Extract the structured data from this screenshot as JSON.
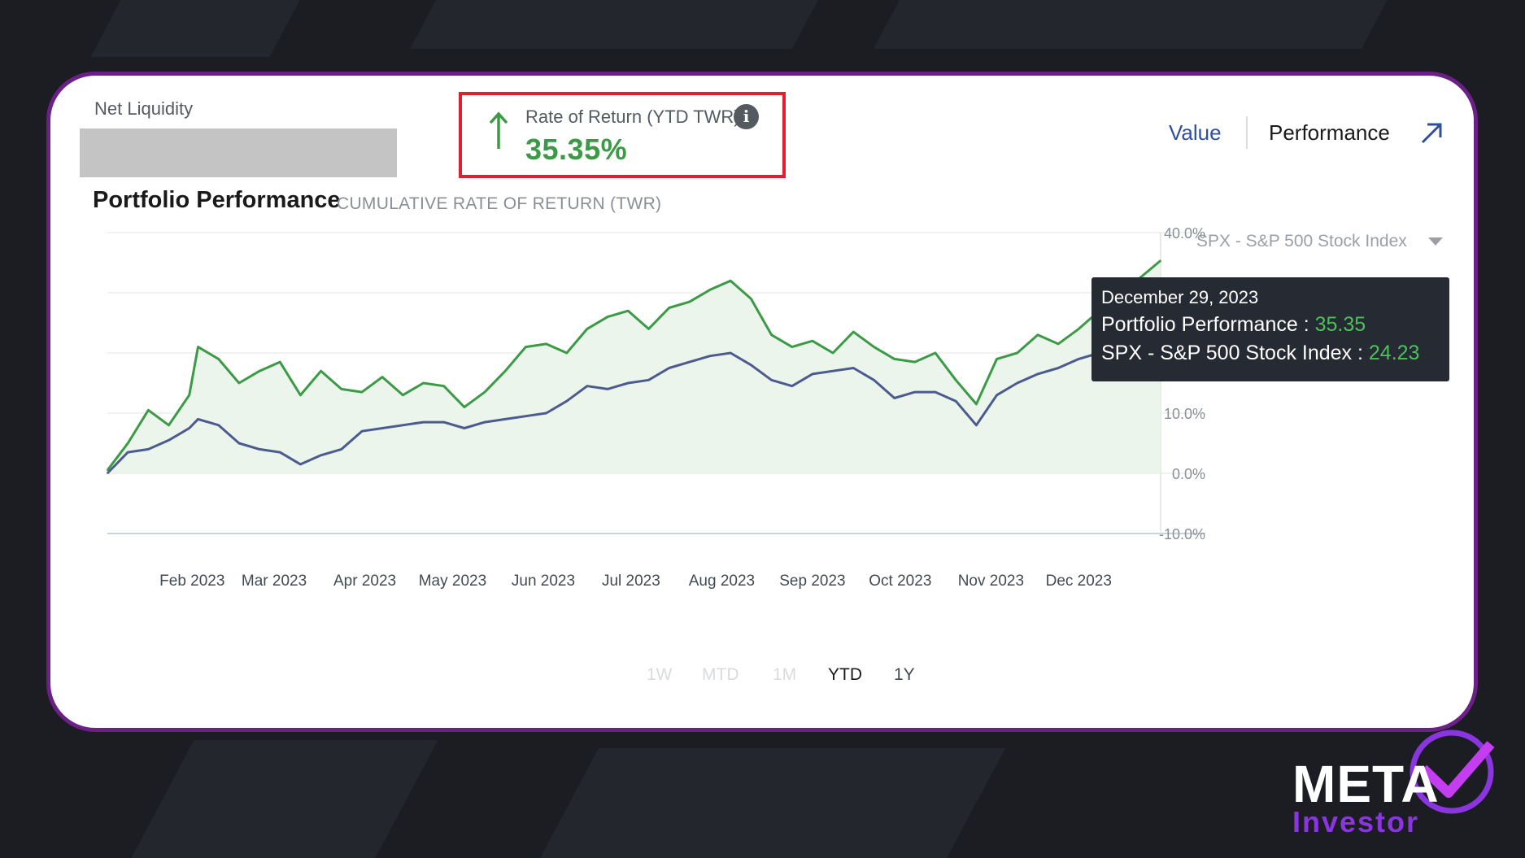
{
  "net_liquidity": {
    "label": "Net Liquidity"
  },
  "rate_of_return": {
    "label": "Rate of Return (YTD TWR)",
    "value": "35.35%",
    "info_icon": "info-icon",
    "trend_icon": "arrow-up-icon",
    "accent": "#3c9a47"
  },
  "view_toggle": {
    "value_label": "Value",
    "performance_label": "Performance",
    "expand_icon": "arrow-up-right-icon"
  },
  "chart_header": {
    "title": "Portfolio Performance",
    "subtitle": "CUMULATIVE RATE OF RETURN (TWR)"
  },
  "benchmark_select": {
    "selected": "SPX - S&P 500 Stock Index",
    "icon": "caret-down-icon"
  },
  "tooltip": {
    "date": "December 29, 2023",
    "portfolio_label": "Portfolio Performance : ",
    "portfolio_value": "35.35",
    "benchmark_label": "SPX - S&P 500 Stock Index : ",
    "benchmark_value": "24.23"
  },
  "periods": [
    "1W",
    "MTD",
    "1M",
    "YTD",
    "1Y"
  ],
  "active_period": "YTD",
  "logo": {
    "line1": "META",
    "line2": "Investor"
  },
  "chart_data": {
    "type": "line",
    "title": "Portfolio Performance",
    "subtitle": "CUMULATIVE RATE OF RETURN (TWR)",
    "x_tick_labels": [
      "Feb 2023",
      "Mar 2023",
      "Apr 2023",
      "May 2023",
      "Jun 2023",
      "Jul 2023",
      "Aug 2023",
      "Sep 2023",
      "Oct 2023",
      "Nov 2023",
      "Dec 2023"
    ],
    "y_tick_labels": [
      "40.0%",
      "30.0%",
      "20.0%",
      "10.0%",
      "0.0%",
      "-10.0%"
    ],
    "ylim": [
      -10,
      40
    ],
    "y_ticks": [
      40,
      30,
      20,
      10,
      0,
      -10
    ],
    "x_ticks": [
      "2023-02-01",
      "2023-03-01",
      "2023-04-01",
      "2023-05-01",
      "2023-06-01",
      "2023-07-01",
      "2023-08-01",
      "2023-09-01",
      "2023-10-01",
      "2023-11-01",
      "2023-12-01"
    ],
    "xlim": [
      "2023-01-03",
      "2023-12-29"
    ],
    "grid": true,
    "series": [
      {
        "name": "Portfolio Performance",
        "color": "#3c9a47",
        "fill": true,
        "x": [
          "2023-01-03",
          "2023-01-10",
          "2023-01-17",
          "2023-01-24",
          "2023-01-31",
          "2023-02-03",
          "2023-02-10",
          "2023-02-17",
          "2023-02-24",
          "2023-03-03",
          "2023-03-10",
          "2023-03-17",
          "2023-03-24",
          "2023-03-31",
          "2023-04-07",
          "2023-04-14",
          "2023-04-21",
          "2023-04-28",
          "2023-05-05",
          "2023-05-12",
          "2023-05-19",
          "2023-05-26",
          "2023-06-02",
          "2023-06-09",
          "2023-06-16",
          "2023-06-23",
          "2023-06-30",
          "2023-07-07",
          "2023-07-14",
          "2023-07-21",
          "2023-07-28",
          "2023-08-04",
          "2023-08-11",
          "2023-08-18",
          "2023-08-25",
          "2023-09-01",
          "2023-09-08",
          "2023-09-15",
          "2023-09-22",
          "2023-09-29",
          "2023-10-06",
          "2023-10-13",
          "2023-10-20",
          "2023-10-27",
          "2023-11-03",
          "2023-11-10",
          "2023-11-17",
          "2023-11-24",
          "2023-12-01",
          "2023-12-08",
          "2023-12-15",
          "2023-12-22",
          "2023-12-29"
        ],
        "y": [
          0.5,
          5.0,
          10.5,
          8.0,
          13.0,
          21.0,
          19.0,
          15.0,
          17.0,
          18.5,
          13.0,
          17.0,
          14.0,
          13.5,
          16.0,
          13.0,
          15.0,
          14.5,
          11.0,
          13.5,
          17.0,
          21.0,
          21.5,
          20.0,
          24.0,
          26.0,
          27.0,
          24.0,
          27.5,
          28.5,
          30.5,
          32.0,
          29.0,
          23.0,
          21.0,
          22.0,
          20.0,
          23.5,
          21.0,
          19.0,
          18.5,
          20.0,
          15.5,
          11.5,
          19.0,
          20.0,
          23.0,
          21.5,
          24.0,
          27.0,
          30.0,
          32.5,
          35.35
        ]
      },
      {
        "name": "SPX - S&P 500 Stock Index",
        "color": "#4c5b8f",
        "fill": false,
        "x": [
          "2023-01-03",
          "2023-01-10",
          "2023-01-17",
          "2023-01-24",
          "2023-01-31",
          "2023-02-03",
          "2023-02-10",
          "2023-02-17",
          "2023-02-24",
          "2023-03-03",
          "2023-03-10",
          "2023-03-17",
          "2023-03-24",
          "2023-03-31",
          "2023-04-07",
          "2023-04-14",
          "2023-04-21",
          "2023-04-28",
          "2023-05-05",
          "2023-05-12",
          "2023-05-19",
          "2023-05-26",
          "2023-06-02",
          "2023-06-09",
          "2023-06-16",
          "2023-06-23",
          "2023-06-30",
          "2023-07-07",
          "2023-07-14",
          "2023-07-21",
          "2023-07-28",
          "2023-08-04",
          "2023-08-11",
          "2023-08-18",
          "2023-08-25",
          "2023-09-01",
          "2023-09-08",
          "2023-09-15",
          "2023-09-22",
          "2023-09-29",
          "2023-10-06",
          "2023-10-13",
          "2023-10-20",
          "2023-10-27",
          "2023-11-03",
          "2023-11-10",
          "2023-11-17",
          "2023-11-24",
          "2023-12-01",
          "2023-12-08",
          "2023-12-15",
          "2023-12-22",
          "2023-12-29"
        ],
        "y": [
          0.0,
          3.5,
          4.0,
          5.5,
          7.5,
          9.0,
          8.0,
          5.0,
          4.0,
          3.5,
          1.5,
          3.0,
          4.0,
          7.0,
          7.5,
          8.0,
          8.5,
          8.5,
          7.5,
          8.5,
          9.0,
          9.5,
          10.0,
          12.0,
          14.5,
          14.0,
          15.0,
          15.5,
          17.5,
          18.5,
          19.5,
          20.0,
          18.0,
          15.5,
          14.5,
          16.5,
          17.0,
          17.5,
          15.5,
          12.5,
          13.5,
          13.5,
          12.0,
          8.0,
          13.0,
          15.0,
          16.5,
          17.5,
          19.0,
          20.0,
          21.5,
          23.0,
          24.23
        ]
      }
    ],
    "annotation": "December 29, 2023"
  }
}
